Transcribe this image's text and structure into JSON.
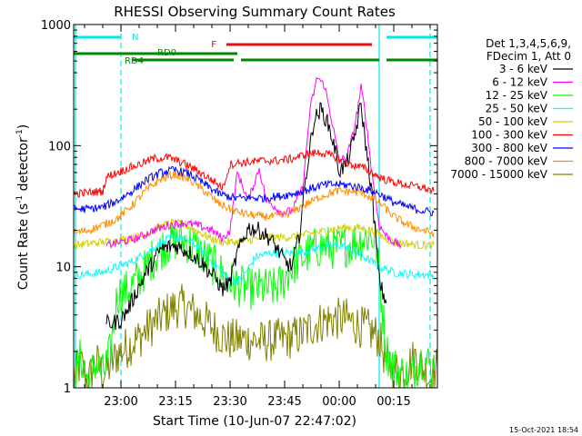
{
  "chart_data": {
    "type": "line",
    "title": "RHESSI Observing Summary Count Rates",
    "xlabel": "Start Time (10-Jun-07 22:47:02)",
    "ylabel_main": "Count Rate (s",
    "ylabel_sup1": "-1",
    "ylabel_mid": " detector",
    "ylabel_sup2": "-1",
    "ylabel_end": ")",
    "y_scale": "log",
    "ylim": [
      1,
      1000
    ],
    "xlim_minutes_after_start": [
      0,
      100
    ],
    "ytick_labels": [
      {
        "label": "1",
        "value": 1
      },
      {
        "label": "10",
        "value": 10
      },
      {
        "label": "100",
        "value": 100
      },
      {
        "label": "1000",
        "value": 1000
      }
    ],
    "xtick_labels": [
      {
        "label": "23:00",
        "minute": 13
      },
      {
        "label": "23:15",
        "minute": 28
      },
      {
        "label": "23:30",
        "minute": 43
      },
      {
        "label": "23:45",
        "minute": 58
      },
      {
        "label": "00:00",
        "minute": 73
      },
      {
        "label": "00:15",
        "minute": 88
      }
    ],
    "legend_header": [
      "Det 1,3,4,5,6,9,",
      "FDecim 1, Att 0"
    ],
    "timestamp": "15-Oct-2021 18:54",
    "flag_bars": [
      {
        "label": "N",
        "color": "#00e8e8",
        "segments": [
          [
            0,
            13
          ],
          [
            86,
            100
          ]
        ],
        "level": 0
      },
      {
        "label": "F",
        "color": "#e01010",
        "segments": [
          [
            42,
            82
          ]
        ],
        "level": 1
      },
      {
        "label": "RD0",
        "color": "#008800",
        "segments": [
          [
            0,
            45
          ]
        ],
        "level": 2
      },
      {
        "label": "RD4",
        "color": "#008800",
        "segments": [
          [
            16,
            44
          ],
          [
            46,
            66
          ],
          [
            66,
            84
          ],
          [
            86,
            100
          ]
        ],
        "level": 3
      }
    ],
    "flag_vlines": [
      {
        "minute": 0.5,
        "color": "#00e8e8",
        "style": "solid"
      },
      {
        "minute": 13,
        "color": "#00e8e8",
        "style": "dashed"
      },
      {
        "minute": 84,
        "color": "#00e8e8",
        "style": "solid"
      },
      {
        "minute": 98,
        "color": "#00e8e8",
        "style": "dashed"
      }
    ],
    "series": [
      {
        "name": "3 - 6 keV",
        "color": "#000000",
        "x": [
          9,
          10,
          13,
          15,
          17,
          20,
          24,
          28,
          32,
          35,
          39,
          41,
          43,
          45,
          48,
          51,
          54,
          56,
          58,
          60,
          62,
          64,
          66,
          68,
          70,
          72,
          73,
          75,
          77,
          79,
          80,
          82,
          84,
          85,
          86
        ],
        "y": [
          3.4,
          3.4,
          3.6,
          4.5,
          6,
          9,
          14,
          15,
          13,
          11,
          8,
          6.5,
          7.5,
          13,
          21,
          20,
          17,
          14,
          11,
          10,
          18,
          60,
          160,
          200,
          150,
          90,
          62,
          70,
          110,
          220,
          120,
          40,
          8,
          6,
          5
        ]
      },
      {
        "name": "6 - 12 keV",
        "color": "#ff00ff",
        "x": [
          9,
          13,
          17,
          22,
          26,
          30,
          34,
          38,
          41,
          43,
          45,
          48,
          51,
          53,
          55,
          57,
          60,
          63,
          65,
          67,
          69,
          71,
          73,
          75,
          77,
          79,
          80,
          82,
          84,
          86,
          88,
          90
        ],
        "y": [
          15,
          16,
          17,
          20,
          22,
          23,
          22,
          20,
          17,
          20,
          60,
          35,
          65,
          35,
          32,
          28,
          29,
          45,
          200,
          370,
          310,
          160,
          75,
          80,
          130,
          300,
          200,
          60,
          22,
          18,
          16,
          15
        ]
      },
      {
        "name": "12 - 25 keV",
        "color": "#00ff00",
        "x": [
          0,
          2,
          4,
          6,
          8,
          10,
          12,
          14,
          15,
          18,
          21,
          25,
          29,
          33,
          36,
          39,
          42,
          45,
          48,
          52,
          55,
          57,
          60,
          63,
          66,
          69,
          72,
          75,
          78,
          81,
          83,
          86,
          88,
          92,
          96,
          99
        ],
        "y": [
          1.2,
          1.8,
          1.1,
          1.6,
          1.3,
          1.9,
          5.8,
          6.2,
          6.5,
          8,
          11,
          15,
          17,
          15,
          12,
          10,
          8,
          7,
          6.6,
          6.6,
          6.6,
          7.2,
          10,
          12,
          14,
          15,
          14,
          15,
          16,
          18,
          17,
          2,
          1.5,
          1.2,
          1.8,
          1.4
        ]
      },
      {
        "name": "25 - 50 keV",
        "color": "#00ffff",
        "x": [
          0,
          4,
          8,
          10,
          12,
          14,
          16,
          19,
          23,
          27,
          31,
          35,
          38,
          41,
          43,
          46,
          50,
          54,
          58,
          62,
          66,
          70,
          74,
          78,
          82,
          84,
          86,
          88,
          92,
          96,
          99
        ],
        "y": [
          8.5,
          8.7,
          9,
          9.5,
          10,
          10.5,
          11,
          12.5,
          15,
          17.5,
          17,
          14,
          11,
          9,
          7.5,
          7.8,
          12,
          13,
          13,
          13,
          14,
          15,
          15,
          13,
          11,
          10,
          9.5,
          9,
          8.7,
          8.6,
          8.5
        ]
      },
      {
        "name": "50 - 100 keV",
        "color": "#d0d000",
        "x": [
          0,
          4,
          8,
          12,
          15,
          19,
          23,
          27,
          31,
          35,
          38,
          41,
          43,
          46,
          50,
          54,
          58,
          62,
          66,
          70,
          74,
          78,
          82,
          84,
          86,
          88,
          92,
          96,
          99
        ],
        "y": [
          15,
          15.5,
          16,
          16.5,
          17,
          18,
          21,
          23,
          22,
          19,
          17,
          16,
          16,
          16,
          17,
          17.5,
          17.5,
          18,
          19,
          20,
          21,
          21,
          20,
          18.5,
          17,
          16,
          15.5,
          15,
          15
        ]
      },
      {
        "name": "100 - 300 keV",
        "color": "#ff0000",
        "x": [
          0,
          4,
          8,
          9,
          12,
          15,
          18,
          22,
          26,
          30,
          34,
          38,
          41,
          43,
          45,
          48,
          52,
          56,
          60,
          64,
          68,
          72,
          76,
          80,
          84,
          86,
          88,
          92,
          96,
          99
        ],
        "y": [
          40,
          41,
          42,
          55,
          60,
          65,
          70,
          78,
          80,
          72,
          62,
          52,
          45,
          70,
          72,
          73,
          75,
          75,
          78,
          85,
          88,
          80,
          70,
          65,
          55,
          52,
          50,
          47,
          45,
          42
        ]
      },
      {
        "name": "300 - 800 keV",
        "color": "#0000ff",
        "x": [
          0,
          4,
          8,
          12,
          16,
          20,
          24,
          28,
          32,
          36,
          40,
          44,
          48,
          52,
          56,
          60,
          64,
          68,
          72,
          76,
          80,
          84,
          88,
          92,
          96,
          99
        ],
        "y": [
          30,
          30,
          31,
          35,
          42,
          52,
          60,
          63,
          58,
          48,
          40,
          37,
          37,
          37,
          38,
          40,
          43,
          47,
          48,
          47,
          44,
          40,
          34,
          31,
          29,
          28
        ]
      },
      {
        "name": "800 - 7000 keV",
        "color": "#ff8c00",
        "x": [
          0,
          4,
          8,
          12,
          16,
          20,
          24,
          28,
          32,
          36,
          40,
          44,
          48,
          52,
          56,
          60,
          64,
          68,
          72,
          76,
          80,
          84,
          88,
          92,
          96,
          99
        ],
        "y": [
          19,
          20,
          22,
          25,
          32,
          43,
          53,
          58,
          52,
          42,
          33,
          29,
          27,
          26,
          26,
          28,
          33,
          38,
          42,
          42,
          40,
          34,
          26,
          22,
          20,
          19
        ]
      },
      {
        "name": "7000 - 15000 keV",
        "color": "#808000",
        "x": [
          0,
          2,
          4,
          6,
          8,
          10,
          12,
          15,
          18,
          21,
          24,
          27,
          30,
          33,
          36,
          39,
          42,
          45,
          48,
          52,
          56,
          60,
          63,
          66,
          69,
          72,
          75,
          78,
          81,
          84,
          86,
          90,
          94,
          98,
          100
        ],
        "y": [
          1.2,
          1.6,
          1.1,
          1.7,
          1.3,
          1.5,
          1.9,
          2.2,
          2.6,
          3.2,
          3.8,
          4.5,
          4.8,
          4.2,
          3.6,
          3,
          2.5,
          2.5,
          2.5,
          2.4,
          2.5,
          2.6,
          2.8,
          3.3,
          3.6,
          3.7,
          3.7,
          3.3,
          3,
          2.6,
          1.6,
          1.3,
          1.8,
          1.2,
          1.5
        ]
      }
    ]
  }
}
